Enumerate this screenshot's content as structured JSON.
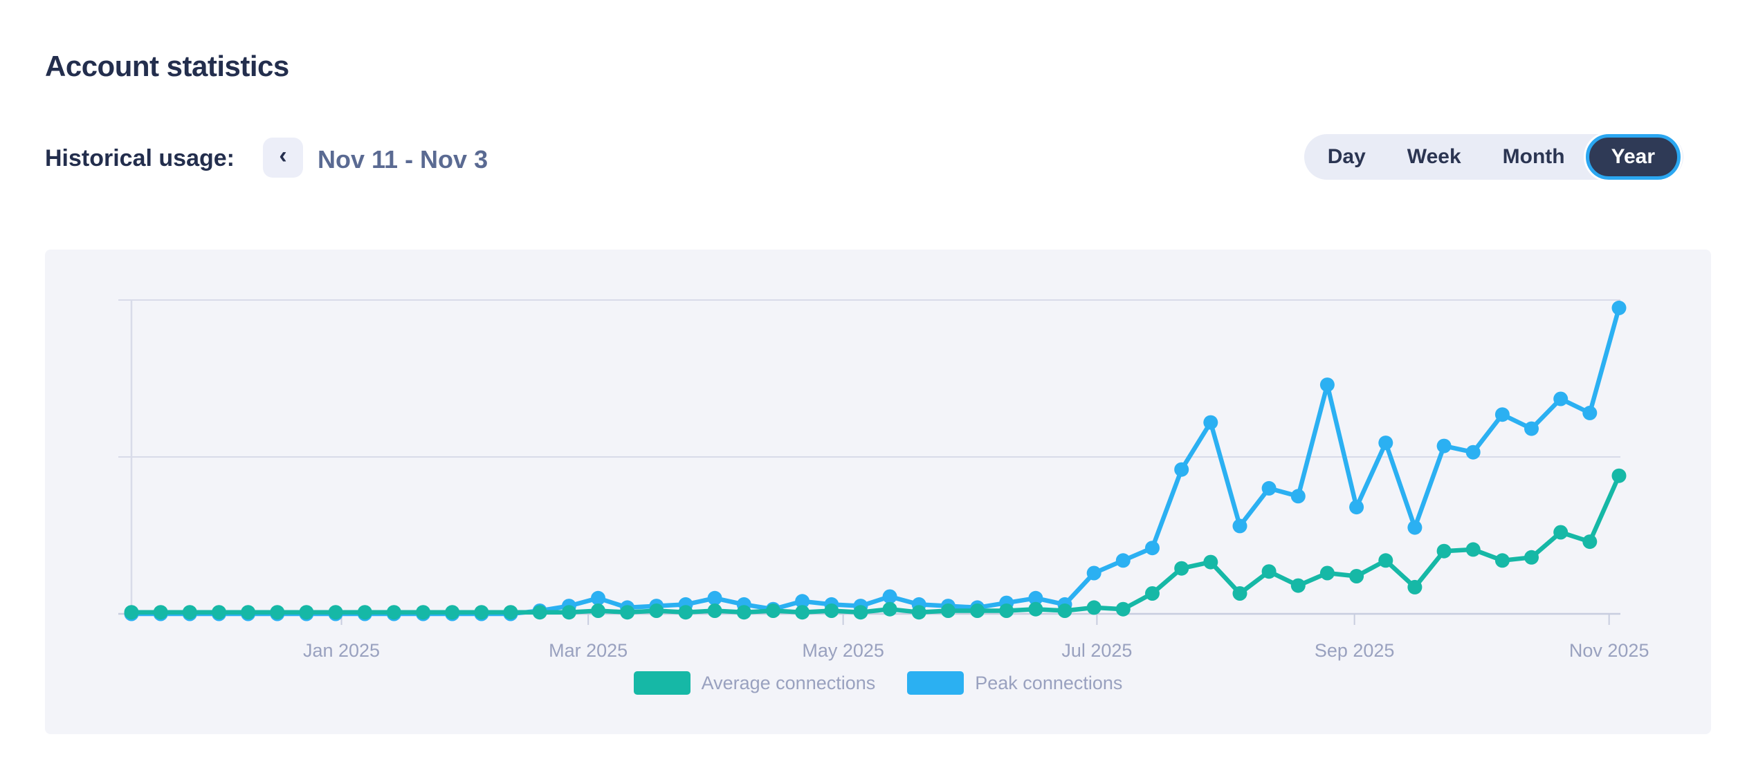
{
  "page_title": "Account statistics",
  "controls": {
    "history_label": "Historical usage:",
    "prev_icon": "‹",
    "date_range": "Nov 11 - Nov 3",
    "periods": [
      {
        "label": "Day",
        "selected": false
      },
      {
        "label": "Week",
        "selected": false
      },
      {
        "label": "Month",
        "selected": false
      },
      {
        "label": "Year",
        "selected": true
      }
    ]
  },
  "chart_data": {
    "type": "line",
    "title": "",
    "xlabel": "",
    "ylabel": "",
    "x_unit": "week",
    "x_range_note": "52 weekly points, Nov 11 2024 - Nov 3 2025",
    "x_tick_labels": [
      "Jan 2025",
      "Mar 2025",
      "May 2025",
      "Jul 2025",
      "Sep 2025",
      "Nov 2025"
    ],
    "x_tick_point_index": [
      7.2,
      15.66,
      24.4,
      33.1,
      41.93,
      50.66
    ],
    "ylim": [
      0,
      215
    ],
    "y_gridlines": [
      100,
      200
    ],
    "grid": "horizontal-only, unlabeled y axis",
    "legend_position": "bottom-center",
    "series": [
      {
        "name": "Average connections",
        "color": "#16b8a6",
        "values": [
          1,
          1,
          1,
          1,
          1,
          1,
          1,
          1,
          1,
          1,
          1,
          1,
          1,
          1,
          1,
          1,
          2,
          1,
          2,
          1,
          2,
          1,
          2,
          1,
          2,
          1,
          3,
          1,
          2,
          2,
          2,
          3,
          2,
          4,
          3,
          13,
          29,
          33,
          13,
          27,
          18,
          26,
          24,
          34,
          17,
          40,
          41,
          34,
          36,
          52,
          46,
          88
        ]
      },
      {
        "name": "Peak connections",
        "color": "#2bb0f2",
        "values": [
          0,
          0,
          0,
          0,
          0,
          0,
          0,
          0,
          0,
          0,
          0,
          0,
          0,
          0,
          2,
          5,
          10,
          4,
          5,
          6,
          10,
          6,
          3,
          8,
          6,
          5,
          11,
          6,
          5,
          4,
          7,
          10,
          6,
          26,
          34,
          42,
          92,
          122,
          56,
          80,
          75,
          146,
          68,
          109,
          55,
          107,
          103,
          127,
          118,
          137,
          128,
          195
        ]
      }
    ]
  },
  "colors": {
    "page_bg": "#ffffff",
    "card_bg": "#f3f4f9",
    "heading": "#232e4d",
    "date_text": "#5a6a92",
    "muted_label": "#99a1bf",
    "gridline": "#d8dbe9",
    "baseline": "#c8cddf",
    "toggle_bg": "#e9ecf6",
    "toggle_text": "#2b3552",
    "selected_pill_bg": "#2f3a56",
    "selected_pill_ring": "#2ba7f1",
    "selected_pill_text": "#ffffff",
    "button_bg": "#eceef8",
    "average_color": "#16b8a6",
    "peak_color": "#2bb0f2"
  }
}
